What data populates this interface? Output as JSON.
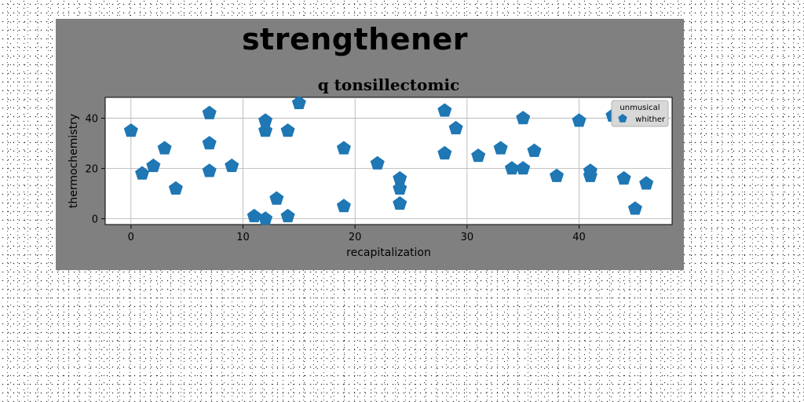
{
  "page": {
    "heading": "strengthener"
  },
  "chart_data": {
    "type": "scatter",
    "title": "q tonsillectomic",
    "xlabel": "recapitalization",
    "ylabel": "thermochemistry",
    "xlim": [
      -2.3,
      48.3
    ],
    "ylim": [
      -2.3,
      48.3
    ],
    "xticks": [
      0,
      10,
      20,
      30,
      40
    ],
    "yticks": [
      0,
      20,
      40
    ],
    "grid": true,
    "marker": "pentagon",
    "legend": {
      "title": "unmusical",
      "location": "upper-right"
    },
    "series": [
      {
        "name": "whither",
        "color": "#1f77b4",
        "points": [
          [
            0,
            35
          ],
          [
            1,
            18
          ],
          [
            2,
            21
          ],
          [
            3,
            28
          ],
          [
            4,
            12
          ],
          [
            7,
            42
          ],
          [
            7,
            30
          ],
          [
            7,
            19
          ],
          [
            9,
            21
          ],
          [
            11,
            1
          ],
          [
            12,
            0
          ],
          [
            12,
            39
          ],
          [
            12,
            35
          ],
          [
            13,
            8
          ],
          [
            14,
            1
          ],
          [
            14,
            35
          ],
          [
            15,
            46
          ],
          [
            19,
            5
          ],
          [
            19,
            28
          ],
          [
            22,
            22
          ],
          [
            24,
            16
          ],
          [
            24,
            12
          ],
          [
            24,
            6
          ],
          [
            28,
            43
          ],
          [
            28,
            26
          ],
          [
            29,
            36
          ],
          [
            31,
            25
          ],
          [
            33,
            28
          ],
          [
            34,
            20
          ],
          [
            35,
            20
          ],
          [
            35,
            40
          ],
          [
            36,
            27
          ],
          [
            38,
            17
          ],
          [
            40,
            39
          ],
          [
            41,
            19
          ],
          [
            41,
            17
          ],
          [
            43,
            41
          ],
          [
            44,
            16
          ],
          [
            45,
            4
          ],
          [
            46,
            14
          ]
        ]
      }
    ]
  }
}
